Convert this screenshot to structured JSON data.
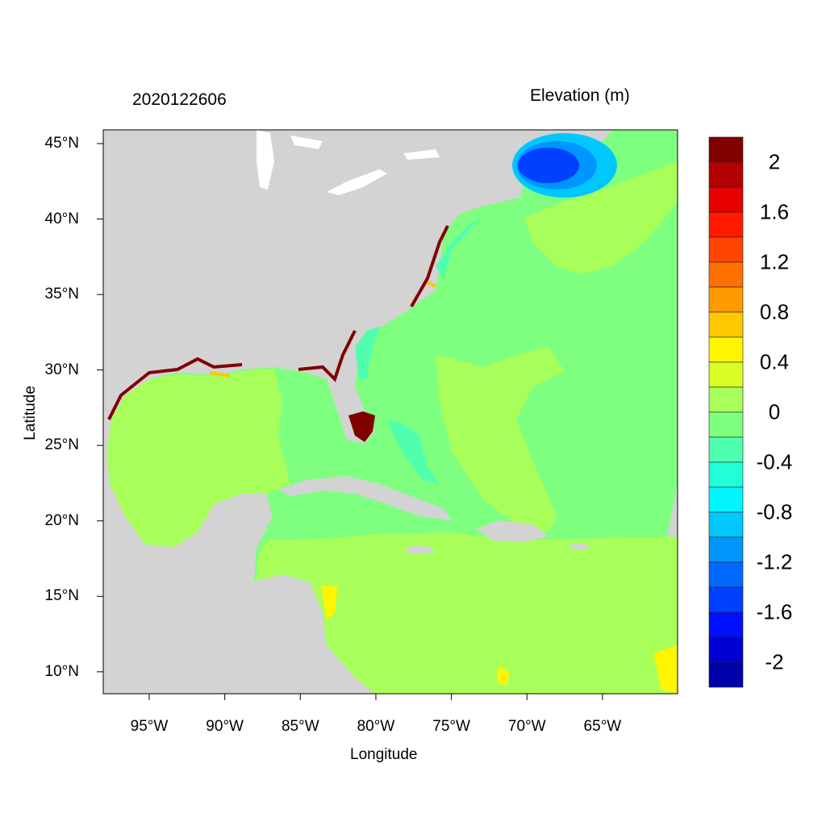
{
  "title_left": "2020122606",
  "title_right": "Elevation (m)",
  "xlabel": "Longitude",
  "ylabel": "Latitude",
  "x_ticks": [
    {
      "lon": -95,
      "label": "95°W"
    },
    {
      "lon": -90,
      "label": "90°W"
    },
    {
      "lon": -85,
      "label": "85°W"
    },
    {
      "lon": -80,
      "label": "80°W"
    },
    {
      "lon": -75,
      "label": "75°W"
    },
    {
      "lon": -70,
      "label": "70°W"
    },
    {
      "lon": -65,
      "label": "65°W"
    }
  ],
  "y_ticks": [
    {
      "lat": 45,
      "label": "45°N"
    },
    {
      "lat": 40,
      "label": "40°N"
    },
    {
      "lat": 35,
      "label": "35°N"
    },
    {
      "lat": 30,
      "label": "30°N"
    },
    {
      "lat": 25,
      "label": "25°N"
    },
    {
      "lat": 20,
      "label": "20°N"
    },
    {
      "lat": 15,
      "label": "15°N"
    },
    {
      "lat": 10,
      "label": "10°N"
    }
  ],
  "colorbar": {
    "colors_top_to_bottom": [
      "#800000",
      "#b30000",
      "#e60000",
      "#ff1a00",
      "#ff4500",
      "#ff7000",
      "#ff9a00",
      "#ffc800",
      "#fff500",
      "#daff24",
      "#a8ff5a",
      "#7fff80",
      "#50ffad",
      "#20ffd8",
      "#00f5ff",
      "#00c8ff",
      "#0096ff",
      "#0068ff",
      "#0040ff",
      "#0010ff",
      "#0000d4",
      "#0000a8"
    ],
    "labels": [
      "2",
      "1.6",
      "1.2",
      "0.8",
      "0.4",
      "0",
      "-0.4",
      "-0.8",
      "-1.2",
      "-1.6",
      "-2"
    ]
  },
  "land_color": "#d3d3d3"
}
